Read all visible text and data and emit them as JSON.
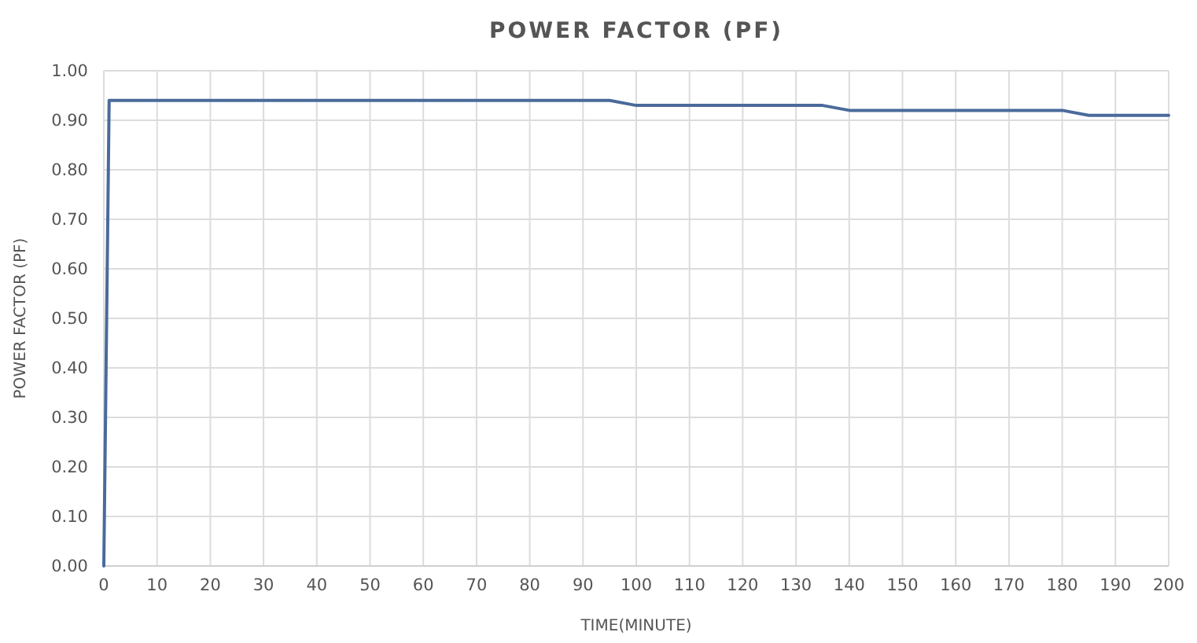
{
  "chart_data": {
    "type": "line",
    "title": "POWER FACTOR (PF)",
    "xlabel": "TIME(MINUTE)",
    "ylabel": "POWER FACTOR (PF)",
    "x": [
      0,
      1,
      95,
      100,
      135,
      140,
      180,
      185,
      200
    ],
    "series": [
      {
        "color": "#4a6a9a",
        "values": [
          0,
          0.94,
          0.94,
          0.93,
          0.93,
          0.92,
          0.92,
          0.91,
          0.91
        ]
      }
    ],
    "xlim": [
      0,
      200
    ],
    "xticks": [
      0,
      10,
      20,
      30,
      40,
      50,
      60,
      70,
      80,
      90,
      100,
      110,
      120,
      130,
      140,
      150,
      160,
      170,
      180,
      190,
      200
    ],
    "ylim": [
      0,
      1
    ],
    "yticks": [
      {
        "value": 0,
        "label": "0.00"
      },
      {
        "value": 0.1,
        "label": "0.10"
      },
      {
        "value": 0.2,
        "label": "0.20"
      },
      {
        "value": 0.3,
        "label": "0.30"
      },
      {
        "value": 0.4,
        "label": "0.40"
      },
      {
        "value": 0.5,
        "label": "0.50"
      },
      {
        "value": 0.6,
        "label": "0.60"
      },
      {
        "value": 0.7,
        "label": "0.70"
      },
      {
        "value": 0.8,
        "label": "0.80"
      },
      {
        "value": 0.9,
        "label": "0.90"
      },
      {
        "value": 1,
        "label": "1.00"
      }
    ],
    "grid": true,
    "marker": "none",
    "line_style": "solid"
  }
}
